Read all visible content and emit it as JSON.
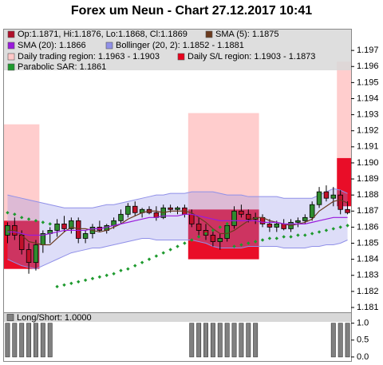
{
  "chart_data": [
    {
      "type": "candlestick",
      "title": "Forex um Neun - Chart 27.12.2017 10:41",
      "ylim": [
        1.1807,
        1.1983
      ],
      "yticks": [
        1.181,
        1.182,
        1.183,
        1.184,
        1.185,
        1.186,
        1.187,
        1.188,
        1.189,
        {
          "value": 1.19,
          "label": "1.190"
        },
        1.191,
        1.192,
        1.193,
        1.194,
        1.195,
        1.196,
        1.197
      ],
      "candles": {
        "name": "Op:1.1871, Hi:1.1876, Lo:1.1868, Cl:1.1869",
        "color": "#b0102a",
        "up_color": "#2e8b2e",
        "down_color": "#c0102a",
        "open": [
          1.1855,
          1.1861,
          1.1855,
          1.1846,
          1.1838,
          1.1849,
          1.1856,
          1.1858,
          1.1862,
          1.1859,
          1.1864,
          1.1853,
          1.1856,
          1.186,
          1.1858,
          1.1861,
          1.1864,
          1.1868,
          1.1873,
          1.1869,
          1.1871,
          1.1869,
          1.1866,
          1.1872,
          1.1871,
          1.1872,
          1.1868,
          1.1862,
          1.1858,
          1.1855,
          1.1851,
          1.1853,
          1.1861,
          1.187,
          1.1868,
          1.1865,
          1.1866,
          1.1862,
          1.186,
          1.1862,
          1.1859,
          1.1863,
          1.1864,
          1.1866,
          1.1874,
          1.1882,
          1.1878,
          1.188,
          1.1871
        ],
        "high": [
          1.1863,
          1.1866,
          1.1858,
          1.185,
          1.1852,
          1.1858,
          1.186,
          1.1865,
          1.1867,
          1.1866,
          1.1866,
          1.1858,
          1.1862,
          1.1864,
          1.1862,
          1.1866,
          1.1871,
          1.1875,
          1.1876,
          1.1872,
          1.1873,
          1.1873,
          1.1874,
          1.1874,
          1.1873,
          1.1874,
          1.1871,
          1.1866,
          1.1862,
          1.1858,
          1.1856,
          1.1863,
          1.1873,
          1.1874,
          1.1871,
          1.1869,
          1.1868,
          1.1865,
          1.1864,
          1.1865,
          1.1865,
          1.1866,
          1.1868,
          1.1876,
          1.1885,
          1.1886,
          1.1885,
          1.1883,
          1.1876
        ],
        "low": [
          1.185,
          1.1852,
          1.1843,
          1.1831,
          1.1833,
          1.1844,
          1.185,
          1.1854,
          1.1857,
          1.1856,
          1.185,
          1.185,
          1.1853,
          1.1857,
          1.1856,
          1.1859,
          1.1862,
          1.1866,
          1.1867,
          1.1866,
          1.1868,
          1.1864,
          1.1865,
          1.1869,
          1.1868,
          1.1866,
          1.186,
          1.1855,
          1.1852,
          1.1848,
          1.1846,
          1.1851,
          1.1859,
          1.1866,
          1.1863,
          1.1862,
          1.186,
          1.1857,
          1.1857,
          1.1858,
          1.1857,
          1.186,
          1.1862,
          1.1864,
          1.1872,
          1.1876,
          1.1873,
          1.1868,
          1.1868
        ],
        "close": [
          1.1861,
          1.1855,
          1.1846,
          1.1838,
          1.1849,
          1.1856,
          1.1858,
          1.1862,
          1.1859,
          1.1864,
          1.1853,
          1.1856,
          1.186,
          1.1858,
          1.1861,
          1.1864,
          1.1868,
          1.1873,
          1.1869,
          1.1871,
          1.1869,
          1.1866,
          1.1872,
          1.1871,
          1.1872,
          1.1868,
          1.1862,
          1.1858,
          1.1855,
          1.1851,
          1.1853,
          1.1861,
          1.187,
          1.1868,
          1.1865,
          1.1866,
          1.1862,
          1.186,
          1.1862,
          1.1859,
          1.1863,
          1.1864,
          1.1866,
          1.1874,
          1.1882,
          1.1878,
          1.188,
          1.1871,
          1.1869
        ]
      },
      "regions": [
        {
          "name": "Daily trading region: 1.1963 - 1.1903",
          "color": "#ffc8c8",
          "spans": [
            {
              "from": 0,
              "to": 4,
              "high": 1.1924,
              "low": 1.1864
            },
            {
              "from": 26,
              "to": 35,
              "high": 1.1931,
              "low": 1.1871
            },
            {
              "from": 47,
              "to": 48,
              "high": 1.1963,
              "low": 1.1903
            }
          ]
        },
        {
          "name": "Daily S/L region: 1.1903 - 1.1873",
          "color": "#e8001c",
          "spans": [
            {
              "from": 0,
              "to": 4,
              "high": 1.1864,
              "low": 1.1834
            },
            {
              "from": 26,
              "to": 35,
              "high": 1.1871,
              "low": 1.184
            },
            {
              "from": 47,
              "to": 48,
              "high": 1.1903,
              "low": 1.1873
            }
          ]
        }
      ],
      "bands": [
        {
          "name": "Bollinger (20, 2): 1.1852 - 1.1881",
          "color": "#9090e8",
          "upper": [
            1.188,
            1.1879,
            1.1878,
            1.1877,
            1.1876,
            1.1875,
            1.1874,
            1.1873,
            1.1872,
            1.1872,
            1.1872,
            1.1872,
            1.1872,
            1.1873,
            1.1874,
            1.1874,
            1.1875,
            1.1876,
            1.1877,
            1.1878,
            1.1879,
            1.188,
            1.188,
            1.1881,
            1.1881,
            1.1881,
            1.1882,
            1.1882,
            1.1882,
            1.1882,
            1.1881,
            1.188,
            1.188,
            1.188,
            1.1879,
            1.1879,
            1.1879,
            1.1879,
            1.1879,
            1.1878,
            1.1878,
            1.1878,
            1.1878,
            1.1878,
            1.188,
            1.1882,
            1.1884,
            1.1883,
            1.1881
          ],
          "lower": [
            1.184,
            1.1838,
            1.1836,
            1.1835,
            1.1834,
            1.1836,
            1.1838,
            1.184,
            1.1842,
            1.1844,
            1.1845,
            1.1846,
            1.1847,
            1.1847,
            1.1848,
            1.1849,
            1.185,
            1.1851,
            1.1852,
            1.1853,
            1.1853,
            1.1852,
            1.1852,
            1.1852,
            1.1852,
            1.1852,
            1.1852,
            1.1851,
            1.185,
            1.1848,
            1.1847,
            1.1847,
            1.1847,
            1.1847,
            1.1848,
            1.1848,
            1.1848,
            1.1848,
            1.1848,
            1.1847,
            1.1847,
            1.1847,
            1.1847,
            1.1848,
            1.1848,
            1.1849,
            1.1849,
            1.185,
            1.1852
          ]
        }
      ],
      "series": [
        {
          "name": "SMA (5): 1.1875",
          "color": "#6b3a1e",
          "style": "line",
          "values": [
            1.1858,
            1.1858,
            1.1855,
            1.1851,
            1.185,
            1.1849,
            1.1849,
            1.1853,
            1.1857,
            1.186,
            1.1859,
            1.1859,
            1.1858,
            1.1857,
            1.1858,
            1.186,
            1.1862,
            1.1865,
            1.1867,
            1.1869,
            1.187,
            1.187,
            1.1869,
            1.187,
            1.187,
            1.187,
            1.1869,
            1.1866,
            1.1863,
            1.1859,
            1.1856,
            1.1856,
            1.1858,
            1.1861,
            1.1864,
            1.1866,
            1.1866,
            1.1864,
            1.1863,
            1.1862,
            1.1861,
            1.1862,
            1.1863,
            1.1865,
            1.187,
            1.1873,
            1.1876,
            1.1877,
            1.1875
          ]
        },
        {
          "name": "SMA (20): 1.1866",
          "color": "#9a1adc",
          "style": "line",
          "values": [
            1.1857,
            1.1857,
            1.1856,
            1.1855,
            1.1855,
            1.1855,
            1.1856,
            1.1857,
            1.1858,
            1.1858,
            1.1858,
            1.1858,
            1.1859,
            1.1859,
            1.186,
            1.1861,
            1.1862,
            1.1863,
            1.1864,
            1.1865,
            1.1866,
            1.1866,
            1.1867,
            1.1867,
            1.1867,
            1.1868,
            1.1868,
            1.1867,
            1.1866,
            1.1865,
            1.1864,
            1.1864,
            1.1864,
            1.1864,
            1.1864,
            1.1864,
            1.1863,
            1.1863,
            1.1863,
            1.1862,
            1.1862,
            1.1862,
            1.1862,
            1.1863,
            1.1864,
            1.1865,
            1.1866,
            1.1866,
            1.1866
          ]
        },
        {
          "name": "Parabolic SAR: 1.1861",
          "color": "#1e9a2e",
          "style": "dots",
          "values": [
            1.1869,
            1.1868,
            1.1866,
            1.1865,
            1.1864,
            1.1863,
            1.1862,
            1.1823,
            1.1824,
            1.1825,
            1.1826,
            1.1827,
            1.1828,
            1.1829,
            1.183,
            1.1831,
            1.1833,
            1.1834,
            1.1836,
            1.1838,
            1.184,
            1.1842,
            1.1844,
            1.1846,
            1.1848,
            1.185,
            1.1852,
            1.1854,
            1.1856,
            1.1858,
            1.186,
            1.1862,
            1.1848,
            1.1849,
            1.185,
            1.1851,
            1.1852,
            1.1853,
            1.1853,
            1.1854,
            1.1854,
            1.1855,
            1.1855,
            1.1856,
            1.1857,
            1.1858,
            1.1859,
            1.186,
            1.1861
          ]
        }
      ]
    },
    {
      "type": "bar",
      "title": "Long/Short: 1.0000",
      "color": "#808080",
      "ylim": [
        -0.12,
        1.3
      ],
      "yticks": [
        {
          "value": 0,
          "label": "0.0"
        },
        {
          "value": 0.5,
          "label": "0.5"
        },
        {
          "value": 1,
          "label": "1.0"
        }
      ],
      "values": [
        1,
        1,
        1,
        1,
        1,
        1,
        1,
        0,
        0,
        0,
        0,
        0,
        0,
        0,
        0,
        0,
        0,
        0,
        0,
        0,
        0,
        0,
        0,
        0,
        0,
        0,
        1,
        1,
        1,
        1,
        1,
        1,
        1,
        1,
        1,
        1,
        0,
        0,
        0,
        0,
        0,
        0,
        0,
        0,
        0,
        0,
        1,
        1,
        1
      ]
    }
  ]
}
